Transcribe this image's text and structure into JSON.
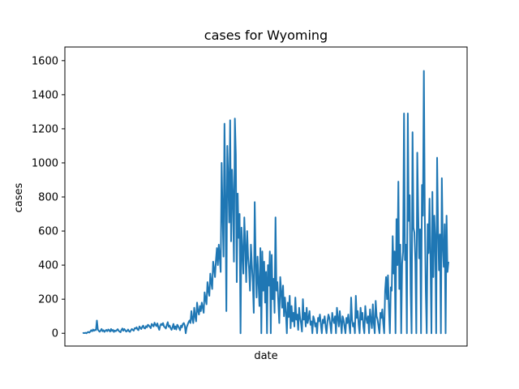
{
  "chart_data": {
    "type": "line",
    "title": "cases for Wyoming",
    "xlabel": "date",
    "ylabel": "cases",
    "ylim": [
      -75,
      1680
    ],
    "yticks": [
      0,
      200,
      400,
      600,
      800,
      1000,
      1200,
      1400,
      1600
    ],
    "ytick_labels": [
      "0",
      "200",
      "400",
      "600",
      "800",
      "1000",
      "1200",
      "1400",
      "1600"
    ],
    "grid": false,
    "legend": "none",
    "line_color": "#1f77b4",
    "series": [
      {
        "values": [
          0,
          2,
          1,
          3,
          0,
          5,
          8,
          4,
          10,
          18,
          12,
          22,
          15,
          20,
          18,
          75,
          22,
          14,
          9,
          17,
          25,
          12,
          18,
          8,
          15,
          20,
          12,
          22,
          18,
          10,
          25,
          14,
          20,
          8,
          16,
          12,
          18,
          24,
          15,
          10,
          6,
          20,
          28,
          15,
          25,
          18,
          10,
          14,
          22,
          12,
          8,
          18,
          25,
          20,
          15,
          30,
          28,
          35,
          22,
          18,
          40,
          32,
          25,
          38,
          45,
          30,
          28,
          42,
          35,
          50,
          45,
          38,
          30,
          55,
          48,
          40,
          62,
          50,
          42,
          58,
          35,
          20,
          45,
          55,
          48,
          60,
          40,
          35,
          28,
          50,
          65,
          38,
          45,
          30,
          20,
          35,
          55,
          25,
          40,
          22,
          50,
          42,
          30,
          18,
          45,
          35,
          55,
          60,
          45,
          0,
          35,
          50,
          65,
          75,
          60,
          130,
          85,
          60,
          150,
          100,
          70,
          180,
          130,
          110,
          160,
          130,
          180,
          150,
          120,
          240,
          200,
          170,
          300,
          250,
          220,
          350,
          300,
          260,
          420,
          380,
          330,
          430,
          500,
          400,
          520,
          440,
          360,
          1000,
          700,
          450,
          1230,
          800,
          130,
          1100,
          900,
          650,
          1250,
          540,
          960,
          800,
          420,
          1260,
          1050,
          300,
          820,
          560,
          700,
          0,
          620,
          480,
          350,
          680,
          520,
          300,
          600,
          450,
          380,
          250,
          520,
          400,
          300,
          120,
          770,
          420,
          210,
          450,
          300,
          160,
          500,
          0,
          480,
          250,
          420,
          180,
          360,
          0,
          400,
          280,
          480,
          0,
          460,
          200,
          320,
          120,
          680,
          250,
          300,
          180,
          60,
          330,
          250,
          150,
          280,
          100,
          210,
          120,
          0,
          180,
          95,
          220,
          30,
          160,
          70,
          120,
          40,
          210,
          80,
          110,
          20,
          150,
          90,
          60,
          10,
          200,
          80,
          120,
          40,
          150,
          60,
          90,
          130,
          50,
          70,
          0,
          100,
          80,
          40,
          60,
          0,
          90,
          70,
          110,
          50,
          0,
          80,
          60,
          100,
          40,
          0,
          70,
          110,
          90,
          50,
          0,
          120,
          80,
          60,
          100,
          0,
          150,
          90,
          40,
          130,
          70,
          0,
          100,
          80,
          40,
          0,
          90,
          60,
          110,
          50,
          0,
          210,
          80,
          40,
          60,
          0,
          220,
          90,
          130,
          50,
          0,
          150,
          80,
          120,
          40,
          0,
          160,
          90,
          60,
          100,
          0,
          140,
          80,
          30,
          170,
          60,
          0,
          190,
          100,
          80,
          40,
          0,
          120,
          90,
          140,
          60,
          0,
          250,
          330,
          200,
          340,
          150,
          0,
          270,
          250,
          570,
          350,
          480,
          0,
          670,
          400,
          890,
          260,
          520,
          0,
          410,
          480,
          1290,
          430,
          520,
          0,
          1290,
          660,
          810,
          260,
          0,
          1180,
          620,
          590,
          420,
          0,
          1060,
          710,
          440,
          610,
          0,
          870,
          690,
          1540,
          680,
          250,
          0,
          640,
          470,
          790,
          430,
          0,
          830,
          330,
          690,
          560,
          0,
          1030,
          630,
          370,
          580,
          0,
          910,
          520,
          390,
          640,
          0,
          690,
          360,
          420
        ]
      }
    ]
  }
}
